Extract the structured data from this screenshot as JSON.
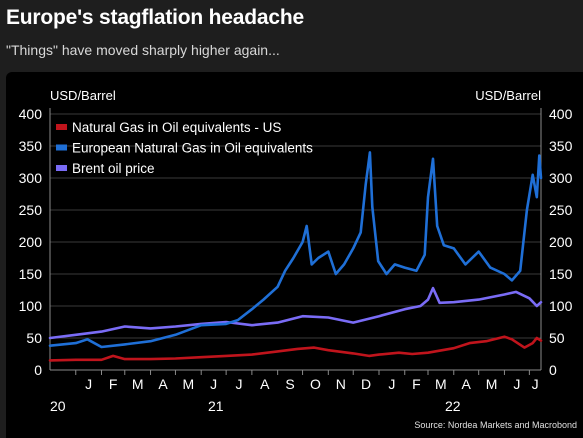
{
  "header": {
    "title": "Europe's stagflation headache",
    "subtitle": "\"Things\" have moved sharply higher again..."
  },
  "source": "Source: Nordea Markets and Macrobond",
  "colors": {
    "background": "#1e1e1e",
    "plot_background": "#000000",
    "series": [
      "#c0141c",
      "#1f6fd6",
      "#7a6cf6"
    ]
  },
  "chart_data": {
    "type": "line",
    "title": "Europe's stagflation headache",
    "subtitle": "\"Things\" have moved sharply higher again...",
    "ylabel_left": "USD/Barrel",
    "ylabel_right": "USD/Barrel",
    "ylim": [
      0,
      400
    ],
    "yticks": [
      0,
      50,
      100,
      150,
      200,
      250,
      300,
      350,
      400
    ],
    "xlim": [
      "2020-12-01",
      "2022-07-15"
    ],
    "month_ticks": [
      "J",
      "F",
      "M",
      "A",
      "M",
      "J",
      "J",
      "A",
      "S",
      "O",
      "N",
      "D",
      "J",
      "F",
      "M",
      "A",
      "M",
      "J",
      "J"
    ],
    "year_labels": [
      "20",
      "21",
      "22"
    ],
    "grid": true,
    "legend_position": "top-left",
    "series": [
      {
        "name": "Natural Gas in Oil equivalents - US",
        "x": [
          "2020-12-01",
          "2021-01-01",
          "2021-02-01",
          "2021-02-15",
          "2021-03-01",
          "2021-04-01",
          "2021-05-01",
          "2021-06-01",
          "2021-07-01",
          "2021-08-01",
          "2021-09-01",
          "2021-09-25",
          "2021-10-15",
          "2021-11-01",
          "2021-12-01",
          "2021-12-20",
          "2022-01-01",
          "2022-01-25",
          "2022-02-10",
          "2022-03-01",
          "2022-04-01",
          "2022-04-20",
          "2022-05-10",
          "2022-06-01",
          "2022-06-10",
          "2022-06-25",
          "2022-07-05",
          "2022-07-10",
          "2022-07-15"
        ],
        "values": [
          15,
          16,
          16,
          22,
          17,
          17,
          18,
          20,
          22,
          24,
          29,
          33,
          35,
          31,
          26,
          22,
          24,
          27,
          25,
          27,
          34,
          42,
          45,
          52,
          48,
          35,
          42,
          50,
          46
        ]
      },
      {
        "name": "European Natural Gas in Oil equivalents",
        "x": [
          "2020-12-01",
          "2021-01-01",
          "2021-01-15",
          "2021-02-01",
          "2021-03-01",
          "2021-04-01",
          "2021-05-01",
          "2021-06-01",
          "2021-07-01",
          "2021-07-15",
          "2021-08-01",
          "2021-08-15",
          "2021-09-01",
          "2021-09-10",
          "2021-09-20",
          "2021-10-01",
          "2021-10-06",
          "2021-10-12",
          "2021-10-20",
          "2021-11-01",
          "2021-11-10",
          "2021-11-20",
          "2021-12-01",
          "2021-12-10",
          "2021-12-16",
          "2021-12-21",
          "2021-12-24",
          "2021-12-31",
          "2022-01-10",
          "2022-01-20",
          "2022-02-01",
          "2022-02-15",
          "2022-02-25",
          "2022-03-01",
          "2022-03-07",
          "2022-03-12",
          "2022-03-20",
          "2022-04-01",
          "2022-04-15",
          "2022-05-01",
          "2022-05-15",
          "2022-06-01",
          "2022-06-10",
          "2022-06-20",
          "2022-06-28",
          "2022-07-05",
          "2022-07-10",
          "2022-07-13",
          "2022-07-15"
        ],
        "values": [
          38,
          42,
          48,
          36,
          40,
          45,
          55,
          70,
          72,
          78,
          95,
          110,
          130,
          155,
          175,
          200,
          225,
          165,
          175,
          185,
          150,
          165,
          190,
          215,
          290,
          340,
          255,
          170,
          150,
          165,
          160,
          155,
          180,
          270,
          330,
          225,
          195,
          190,
          165,
          185,
          160,
          150,
          140,
          155,
          250,
          305,
          270,
          335,
          300
        ]
      },
      {
        "name": "Brent oil price",
        "x": [
          "2020-12-01",
          "2021-01-01",
          "2021-02-01",
          "2021-03-01",
          "2021-04-01",
          "2021-05-01",
          "2021-06-01",
          "2021-07-01",
          "2021-08-01",
          "2021-09-01",
          "2021-10-01",
          "2021-11-01",
          "2021-12-01",
          "2022-01-01",
          "2022-02-01",
          "2022-02-20",
          "2022-03-01",
          "2022-03-07",
          "2022-03-15",
          "2022-04-01",
          "2022-05-01",
          "2022-06-01",
          "2022-06-15",
          "2022-07-01",
          "2022-07-10",
          "2022-07-15"
        ],
        "values": [
          50,
          55,
          60,
          68,
          65,
          68,
          72,
          75,
          70,
          74,
          84,
          82,
          74,
          84,
          95,
          100,
          110,
          128,
          105,
          106,
          110,
          118,
          122,
          112,
          100,
          106
        ]
      }
    ]
  }
}
